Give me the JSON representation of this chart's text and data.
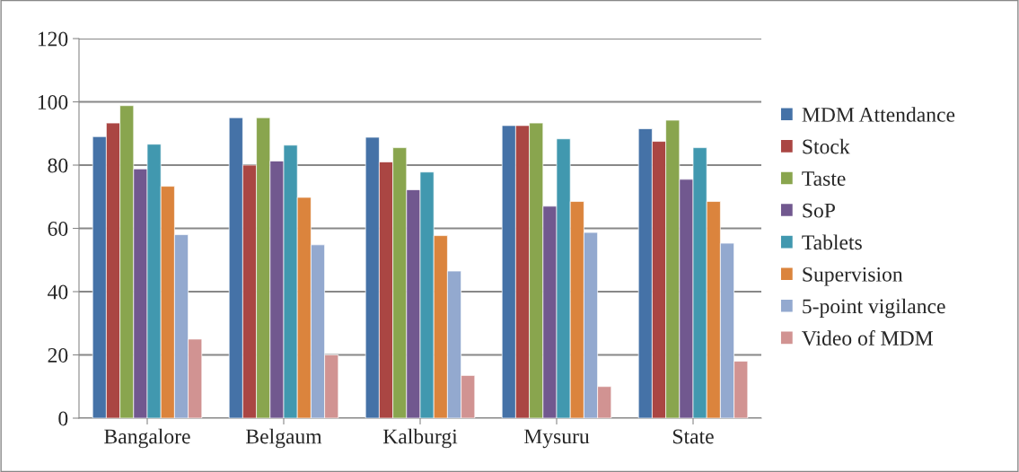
{
  "chart_data": {
    "type": "bar",
    "categories": [
      "Bangalore",
      "Belgaum",
      "Kalburgi",
      "Mysuru",
      "State"
    ],
    "series": [
      {
        "name": "MDM Attendance",
        "color": "#4572a7",
        "values": [
          89,
          95,
          88.8,
          92.5,
          91.5
        ]
      },
      {
        "name": "Stock",
        "color": "#aa4643",
        "values": [
          93.3,
          80,
          81,
          92.5,
          87.5
        ]
      },
      {
        "name": "Taste",
        "color": "#89a54e",
        "values": [
          98.8,
          95,
          85.5,
          93.3,
          94.2
        ]
      },
      {
        "name": "SoP",
        "color": "#71588f",
        "values": [
          78.8,
          81.3,
          72.2,
          67,
          75.5
        ]
      },
      {
        "name": "Tablets",
        "color": "#4198af",
        "values": [
          86.6,
          86.3,
          77.8,
          88.3,
          85.5
        ]
      },
      {
        "name": "Supervision",
        "color": "#db843d",
        "values": [
          73.3,
          69.8,
          57.7,
          68.5,
          68.5
        ]
      },
      {
        "name": "5-point vigilance",
        "color": "#93a9cf",
        "values": [
          58,
          54.8,
          46.5,
          58.7,
          55.3
        ]
      },
      {
        "name": "Video of MDM",
        "color": "#d19392",
        "values": [
          25,
          20,
          13.5,
          10,
          18
        ]
      }
    ],
    "ylim": [
      0,
      120
    ],
    "yticks": [
      0,
      20,
      40,
      60,
      80,
      100,
      120
    ],
    "grid": "y",
    "legend": "right"
  }
}
